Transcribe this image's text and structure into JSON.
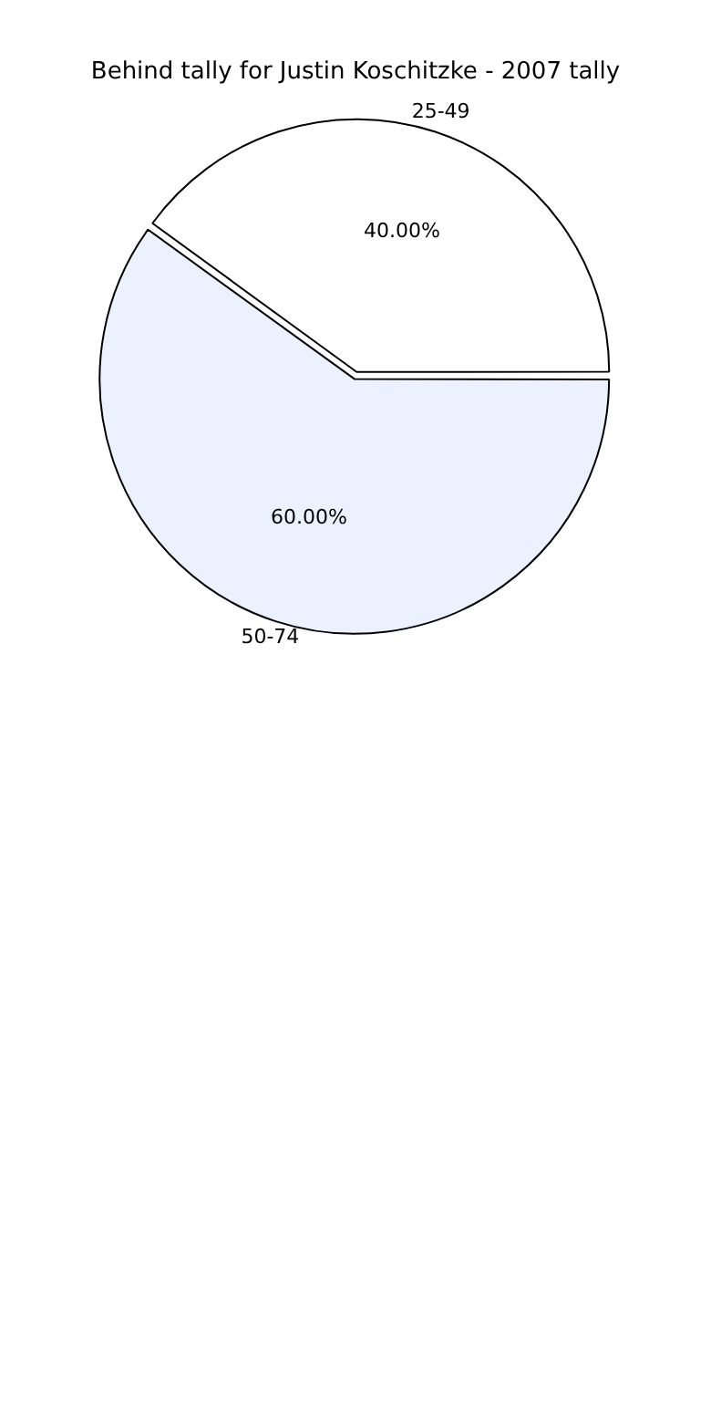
{
  "chart_data": {
    "type": "pie",
    "title": "Behind tally for Justin Koschitzke - 2007 tally",
    "categories": [
      "25-49",
      "50-74"
    ],
    "values": [
      40,
      60
    ],
    "colors": [
      "#ffffff",
      "#ebf1ff"
    ],
    "value_labels": [
      "40.00%",
      "60.00%"
    ]
  }
}
